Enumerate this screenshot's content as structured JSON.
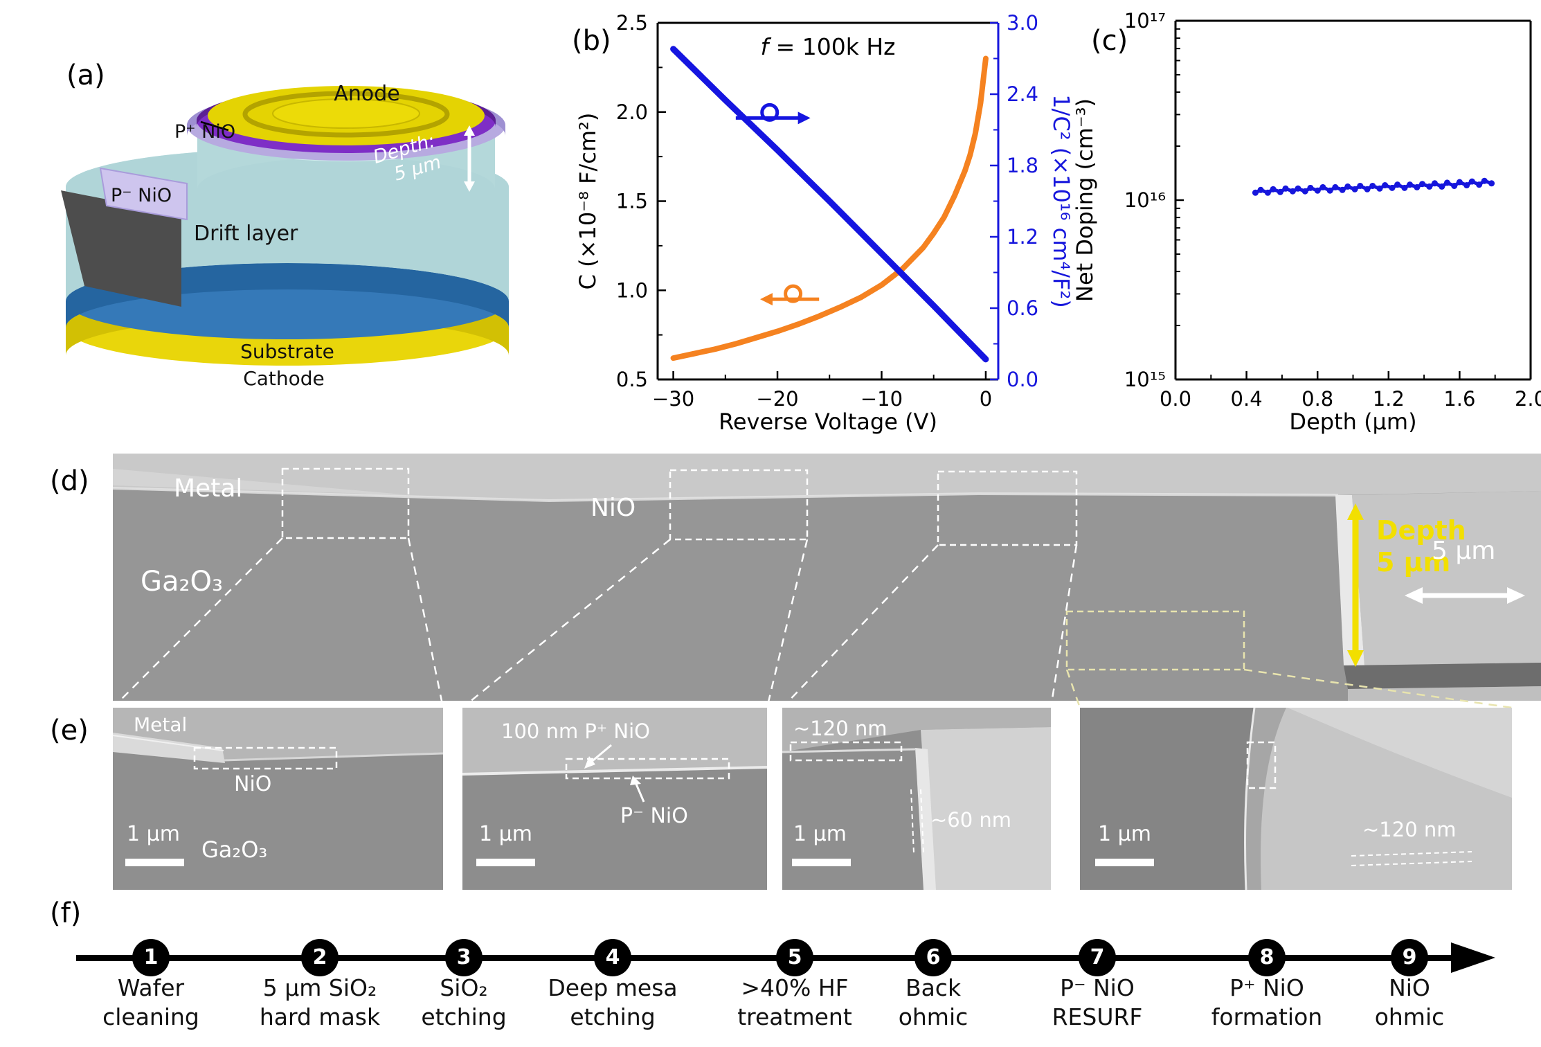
{
  "panel_labels": {
    "a": "(a)",
    "b": "(b)",
    "c": "(c)",
    "d": "(d)",
    "e": "(e)",
    "f": "(f)"
  },
  "schematic": {
    "anode": "Anode",
    "p_plus_nio": "P⁺ NiO",
    "p_minus_nio": "P⁻ NiO",
    "drift_layer": "Drift layer",
    "depth_line1": "Depth:",
    "depth_line2": "5 μm",
    "substrate": "Substrate",
    "cathode": "Cathode"
  },
  "sem_main": {
    "metal": "Metal",
    "nio": "NiO",
    "ga2o3": "Ga₂O₃",
    "depth_word": "Depth",
    "depth_value": "5 μm",
    "scale_label": "5 μm"
  },
  "sem_zooms": [
    {
      "label1": "Metal",
      "label2": "NiO",
      "label3": "Ga₂O₃",
      "scale": "1 μm"
    },
    {
      "label1": "100 nm P⁺ NiO",
      "label2": "P⁻ NiO",
      "scale": "1 μm"
    },
    {
      "label1": "~120 nm",
      "label2": "~60 nm",
      "scale": "1 μm"
    },
    {
      "label1": "~120 nm",
      "scale": "1 μm"
    }
  ],
  "flow": {
    "steps": [
      {
        "num": "1",
        "label": "Wafer\ncleaning"
      },
      {
        "num": "2",
        "label": "5 μm SiO₂\nhard mask"
      },
      {
        "num": "3",
        "label": "SiO₂\netching"
      },
      {
        "num": "4",
        "label": "Deep mesa\netching"
      },
      {
        "num": "5",
        "label": ">40% HF\ntreatment"
      },
      {
        "num": "6",
        "label": "Back\nohmic"
      },
      {
        "num": "7",
        "label": "P⁻ NiO\nRESURF"
      },
      {
        "num": "8",
        "label": "P⁺ NiO\nformation"
      },
      {
        "num": "9",
        "label": "NiO\nohmic"
      }
    ]
  },
  "chart_data": [
    {
      "id": "cv",
      "type": "line",
      "title_parts": [
        {
          "text": "f ",
          "italic": true
        },
        {
          "text": "= 100k Hz",
          "italic": false
        }
      ],
      "xlabel": "Reverse Voltage (V)",
      "ylabel_left": "C (×10⁻⁸ F/cm²)",
      "ylabel_right": "1/C² (×10¹⁶ cm⁴/F²)",
      "xlim": [
        -31.5,
        1.2
      ],
      "ylim_left": [
        0.5,
        2.5
      ],
      "ylim_right": [
        0,
        3
      ],
      "x_ticks": [
        {
          "v": -30,
          "l": "−30"
        },
        {
          "v": -20,
          "l": "−20"
        },
        {
          "v": -10,
          "l": "−10"
        },
        {
          "v": 0,
          "l": "0"
        }
      ],
      "x_minor": [
        -25,
        -15,
        -5
      ],
      "y_ticks_left": [
        {
          "v": 0.5,
          "l": "0.5"
        },
        {
          "v": 1,
          "l": "1.0"
        },
        {
          "v": 1.5,
          "l": "1.5"
        },
        {
          "v": 2,
          "l": "2.0"
        },
        {
          "v": 2.5,
          "l": "2.5"
        }
      ],
      "y_minor_left": [
        0.75,
        1.25,
        1.75,
        2.25
      ],
      "y_ticks_right": [
        {
          "v": 0,
          "l": "0.0"
        },
        {
          "v": 0.6,
          "l": "0.6"
        },
        {
          "v": 1.2,
          "l": "1.2"
        },
        {
          "v": 1.8,
          "l": "1.8"
        },
        {
          "v": 2.4,
          "l": "2.4"
        },
        {
          "v": 3,
          "l": "3.0"
        }
      ],
      "y_minor_right": [
        0.3,
        0.9,
        1.5,
        2.1,
        2.7
      ],
      "right_color": "#1616dc",
      "series": [
        {
          "name": "C",
          "axis": "left",
          "color": "#f58220",
          "width": 8,
          "x": [
            -30,
            -28,
            -26,
            -24,
            -22,
            -20,
            -18,
            -16,
            -14,
            -12,
            -10,
            -8,
            -6,
            -5,
            -4,
            -3,
            -2,
            -1.5,
            -1,
            -0.5,
            0
          ],
          "y": [
            0.62,
            0.645,
            0.67,
            0.7,
            0.735,
            0.77,
            0.81,
            0.855,
            0.905,
            0.96,
            1.03,
            1.12,
            1.24,
            1.32,
            1.41,
            1.53,
            1.67,
            1.76,
            1.88,
            2.05,
            2.3
          ]
        },
        {
          "name": "1/C²",
          "axis": "right",
          "color": "#1515e0",
          "width": 9,
          "x": [
            -30,
            -25,
            -20,
            -15,
            -10,
            -5,
            0
          ],
          "y": [
            2.78,
            2.35,
            1.93,
            1.5,
            1.06,
            0.62,
            0.17
          ]
        }
      ],
      "arrows": [
        {
          "axis": "right",
          "y": 2.2,
          "x_from": -24,
          "x_to": -17.5,
          "color": "#1515e0"
        },
        {
          "axis": "left",
          "y": 0.95,
          "x_from": -16,
          "x_to": -21,
          "color": "#f58220"
        }
      ],
      "margins": {
        "l": 120,
        "r": 88,
        "t": 28,
        "b": 92
      }
    },
    {
      "id": "doping",
      "type": "scatter",
      "xlabel": "Depth (μm)",
      "ylabel": "Net Doping (cm⁻³)",
      "xlim": [
        0,
        2
      ],
      "ylim": [
        1000000000000000.0,
        1e+17
      ],
      "ylog": true,
      "x_ticks": [
        {
          "v": 0,
          "l": "0.0"
        },
        {
          "v": 0.4,
          "l": "0.4"
        },
        {
          "v": 0.8,
          "l": "0.8"
        },
        {
          "v": 1.2,
          "l": "1.2"
        },
        {
          "v": 1.6,
          "l": "1.6"
        },
        {
          "v": 2,
          "l": "2.0"
        }
      ],
      "x_minor": [
        0.2,
        0.6,
        1.0,
        1.4,
        1.8
      ],
      "y_ticks": [
        {
          "v": 1000000000000000.0,
          "l": "10¹⁵"
        },
        {
          "v": 1e+16,
          "l": "10¹⁶"
        },
        {
          "v": 1e+17,
          "l": "10¹⁷"
        }
      ],
      "series": [
        {
          "name": "net-doping",
          "color": "#1616dc",
          "width": 5,
          "marker": true,
          "x": [
            0.45,
            0.48,
            0.52,
            0.55,
            0.59,
            0.62,
            0.66,
            0.69,
            0.73,
            0.76,
            0.8,
            0.83,
            0.87,
            0.9,
            0.94,
            0.97,
            1.01,
            1.04,
            1.08,
            1.11,
            1.15,
            1.18,
            1.22,
            1.25,
            1.29,
            1.32,
            1.36,
            1.39,
            1.43,
            1.46,
            1.5,
            1.53,
            1.57,
            1.6,
            1.64,
            1.67,
            1.71,
            1.74,
            1.78
          ],
          "y": [
            1.1e+16,
            1.14e+16,
            1.1e+16,
            1.15e+16,
            1.11e+16,
            1.16e+16,
            1.12e+16,
            1.16e+16,
            1.12e+16,
            1.17e+16,
            1.13e+16,
            1.18e+16,
            1.13e+16,
            1.18e+16,
            1.14e+16,
            1.19e+16,
            1.15e+16,
            1.2e+16,
            1.15e+16,
            1.2e+16,
            1.16e+16,
            1.21e+16,
            1.17e+16,
            1.22e+16,
            1.17e+16,
            1.22e+16,
            1.18e+16,
            1.23e+16,
            1.19e+16,
            1.24e+16,
            1.19e+16,
            1.25e+16,
            1.2e+16,
            1.26e+16,
            1.21e+16,
            1.27e+16,
            1.22e+16,
            1.28e+16,
            1.24e+16
          ]
        }
      ],
      "margins": {
        "l": 150,
        "r": 15,
        "t": 25,
        "b": 92
      }
    }
  ]
}
